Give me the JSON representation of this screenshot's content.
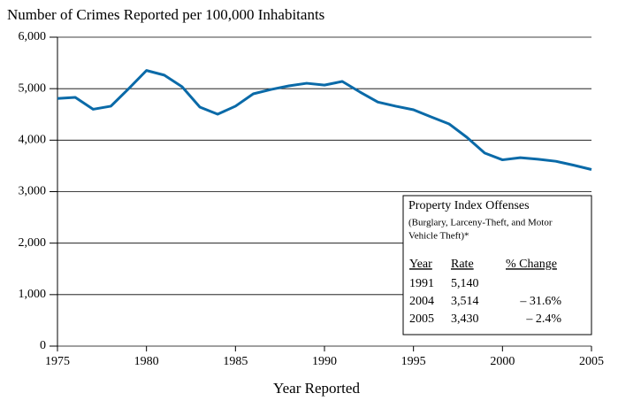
{
  "chart_data": {
    "type": "line",
    "title": "Number of Crimes Reported per 100,000 Inhabitants",
    "x_label": "Year Reported",
    "x": [
      1975,
      1976,
      1977,
      1978,
      1979,
      1980,
      1981,
      1982,
      1983,
      1984,
      1985,
      1986,
      1987,
      1988,
      1989,
      1990,
      1991,
      1992,
      1993,
      1994,
      1995,
      1996,
      1997,
      1998,
      1999,
      2000,
      2001,
      2002,
      2003,
      2004,
      2005
    ],
    "series": [
      {
        "color": "#0a6aa8",
        "values": [
          4810,
          4830,
          4600,
          4660,
          5000,
          5353,
          5263,
          5037,
          4642,
          4504,
          4660,
          4900,
          4985,
          5054,
          5105,
          5070,
          5140,
          4934,
          4740,
          4660,
          4590,
          4450,
          4315,
          4055,
          3750,
          3618,
          3660,
          3630,
          3590,
          3514,
          3430
        ]
      }
    ],
    "xlim": [
      1975,
      2005
    ],
    "xticks": [
      1975,
      1980,
      1985,
      1990,
      1995,
      2000,
      2005
    ],
    "ylim": [
      0,
      6000
    ],
    "yticks": [
      0,
      {
        "value": 1000,
        "label": "1,000"
      },
      {
        "value": 2000,
        "label": "2,000"
      },
      {
        "value": 3000,
        "label": "3,000"
      },
      {
        "value": 4000,
        "label": "4,000"
      },
      {
        "value": 5000,
        "label": "5,000"
      },
      {
        "value": 6000,
        "label": "6,000"
      }
    ],
    "grid": true,
    "inset": {
      "title": "Property Index Offenses",
      "subtitle": [
        "(Burglary, Larceny-Theft, and Motor",
        "Vehicle Theft)*"
      ],
      "columns": [
        "Year",
        "Rate",
        "% Change"
      ],
      "rows": [
        [
          "1991",
          "5,140",
          ""
        ],
        [
          "2004",
          "3,514",
          "– 31.6%"
        ],
        [
          "2005",
          "3,430",
          "– 2.4%"
        ]
      ]
    }
  }
}
